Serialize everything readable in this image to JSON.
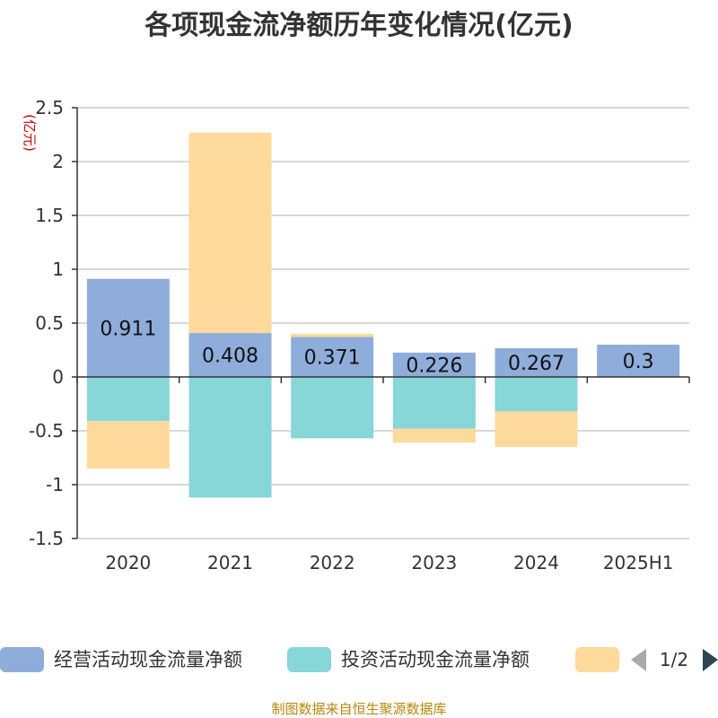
{
  "chart_data": {
    "type": "bar",
    "stacked": true,
    "title": "各项现金流净额历年变化情况(亿元)",
    "unit_label": "(亿元)",
    "categories": [
      "2020",
      "2021",
      "2022",
      "2023",
      "2024",
      "2025H1"
    ],
    "ylim": [
      -1.5,
      2.5
    ],
    "yticks": [
      2.5,
      2,
      1.5,
      1,
      0.5,
      0,
      -0.5,
      -1,
      -1.5
    ],
    "grid": true,
    "legend_position": "bottom",
    "series": [
      {
        "name": "经营活动现金流量净额",
        "color": "#8eaddb",
        "values": [
          0.911,
          0.408,
          0.371,
          0.226,
          0.267,
          0.3
        ],
        "labels": [
          "0.911",
          "0.408",
          "0.371",
          "0.226",
          "0.267",
          "0.3"
        ]
      },
      {
        "name": "投资活动现金流量净额",
        "color": "#87d6d8",
        "values": [
          -0.41,
          -1.12,
          -0.57,
          -0.48,
          -0.32,
          0
        ]
      },
      {
        "name": "",
        "color": "#fdd99b",
        "values": [
          -0.44,
          1.86,
          0.03,
          -0.13,
          -0.33,
          0
        ]
      }
    ],
    "legend_pager": "1/2",
    "source": "制图数据来自恒生聚源数据库"
  }
}
